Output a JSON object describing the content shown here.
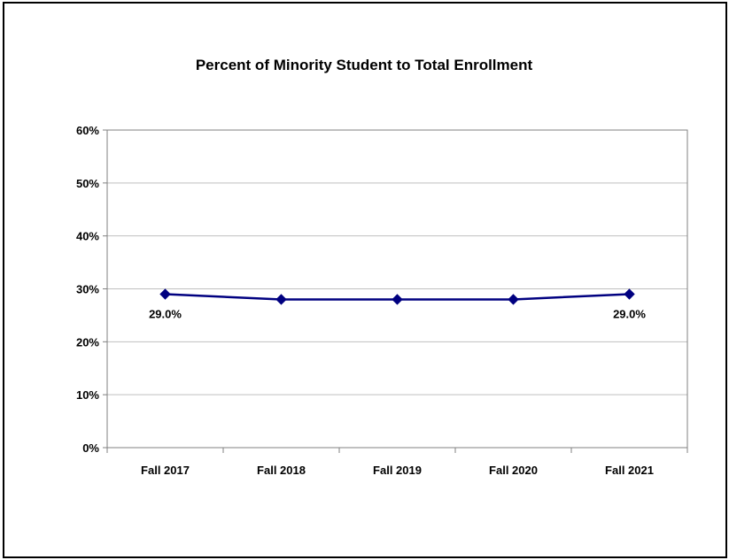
{
  "chart_data": {
    "type": "line",
    "title": "Percent of Minority Student to Total Enrollment",
    "xlabel": "",
    "ylabel": "",
    "categories": [
      "Fall 2017",
      "Fall 2018",
      "Fall 2019",
      "Fall 2020",
      "Fall 2021"
    ],
    "series": [
      {
        "values": [
          29.0,
          28.0,
          28.0,
          28.0,
          29.0
        ],
        "color": "#000080"
      }
    ],
    "data_labels": [
      "29.0%",
      "",
      "",
      "",
      "29.0%"
    ],
    "ylim": [
      0,
      60
    ],
    "y_ticks": [
      0,
      10,
      20,
      30,
      40,
      50,
      60
    ],
    "y_tick_labels": [
      "0%",
      "10%",
      "20%",
      "30%",
      "40%",
      "50%",
      "60%"
    ],
    "grid": true,
    "legend": "none",
    "colors": {
      "line": "#000080",
      "grid": "#bfbfbf",
      "plot_border": "#808080"
    }
  }
}
